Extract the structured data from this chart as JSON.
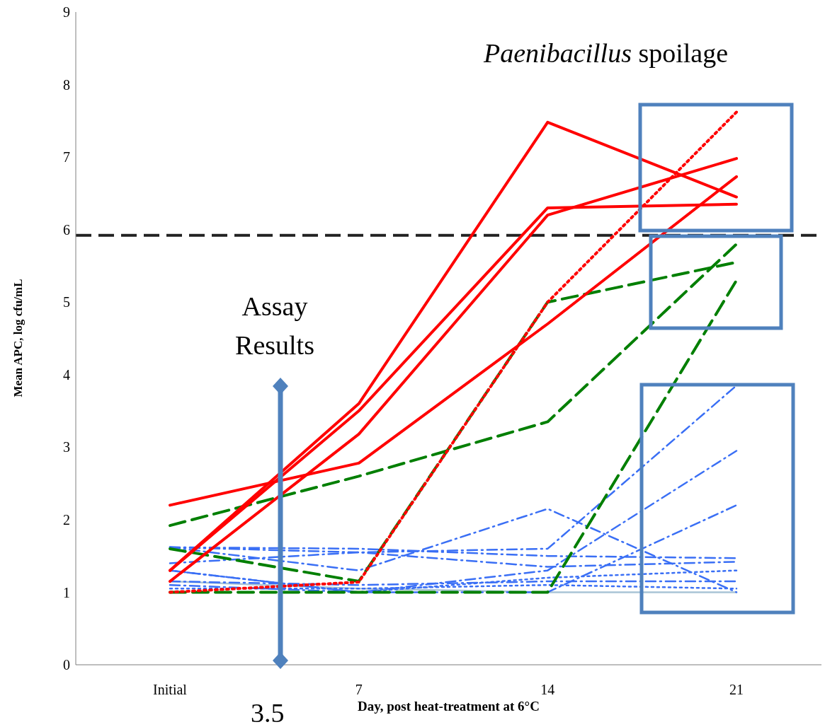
{
  "chart_data": {
    "type": "line",
    "xlabel": "Day, post heat-treatment at 6°C",
    "ylabel": "Mean APC, log cfu/mL",
    "categories": [
      "Initial",
      "7",
      "14",
      "21"
    ],
    "ylim": [
      0,
      9
    ],
    "yticks": [
      0,
      1,
      2,
      3,
      4,
      5,
      6,
      7,
      8,
      9
    ],
    "grid": false,
    "legend": false,
    "marker": "none",
    "ref_lines": [
      {
        "axis": "y",
        "value": 5.92,
        "color": "#222222",
        "line_style": "dashed"
      }
    ],
    "annotations": [
      "Paenibacillus spoilage",
      "Assay Results",
      "3.5"
    ],
    "series": [
      {
        "color": "#ff0000",
        "line_style": "solid",
        "values": [
          2.2,
          2.78,
          4.7,
          6.73
        ]
      },
      {
        "color": "#ff0000",
        "line_style": "solid",
        "values": [
          1.3,
          3.6,
          7.48,
          6.45
        ]
      },
      {
        "color": "#ff0000",
        "line_style": "solid",
        "values": [
          1.3,
          3.5,
          6.3,
          6.35
        ]
      },
      {
        "color": "#ff0000",
        "line_style": "solid",
        "values": [
          1.15,
          3.18,
          6.2,
          6.98
        ]
      },
      {
        "color": "#ff0000",
        "line_style": "dotted",
        "values": [
          1.0,
          1.14,
          5.0,
          7.62
        ]
      },
      {
        "color": "#007f00",
        "line_style": "dashed",
        "values": [
          1.92,
          2.6,
          3.35,
          5.8
        ]
      },
      {
        "color": "#007f00",
        "line_style": "dashed",
        "values": [
          1.6,
          1.15,
          5.0,
          5.55
        ]
      },
      {
        "color": "#007f00",
        "line_style": "dashed",
        "values": [
          1.0,
          1.0,
          1.0,
          5.3
        ]
      },
      {
        "color": "#3a6ff5",
        "line_style": "dashed",
        "values": [
          1.62,
          1.55,
          1.6,
          3.85
        ]
      },
      {
        "color": "#3a6ff5",
        "line_style": "dashed",
        "values": [
          1.3,
          1.0,
          1.3,
          2.95
        ]
      },
      {
        "color": "#3a6ff5",
        "line_style": "dashed",
        "values": [
          1.62,
          1.3,
          2.15,
          1.0
        ]
      },
      {
        "color": "#3a6ff5",
        "line_style": "dashed",
        "values": [
          1.1,
          1.0,
          1.0,
          2.2
        ]
      },
      {
        "color": "#3a6ff5",
        "line_style": "dashed",
        "values": [
          1.62,
          1.6,
          1.5,
          1.47
        ]
      },
      {
        "color": "#3a6ff5",
        "line_style": "dashed",
        "values": [
          1.4,
          1.55,
          1.35,
          1.42
        ]
      },
      {
        "color": "#3a6ff5",
        "line_style": "dotted",
        "values": [
          1.3,
          1.0,
          1.2,
          1.3
        ]
      },
      {
        "color": "#3a6ff5",
        "line_style": "dashed",
        "values": [
          1.15,
          1.1,
          1.15,
          1.15
        ]
      },
      {
        "color": "#3a6ff5",
        "line_style": "dotted",
        "values": [
          1.05,
          1.05,
          1.1,
          1.05
        ]
      },
      {
        "color": "#a9c4d6",
        "line_style": "solid",
        "values": [
          1.15,
          1.05,
          1.0,
          1.0
        ]
      }
    ]
  }
}
